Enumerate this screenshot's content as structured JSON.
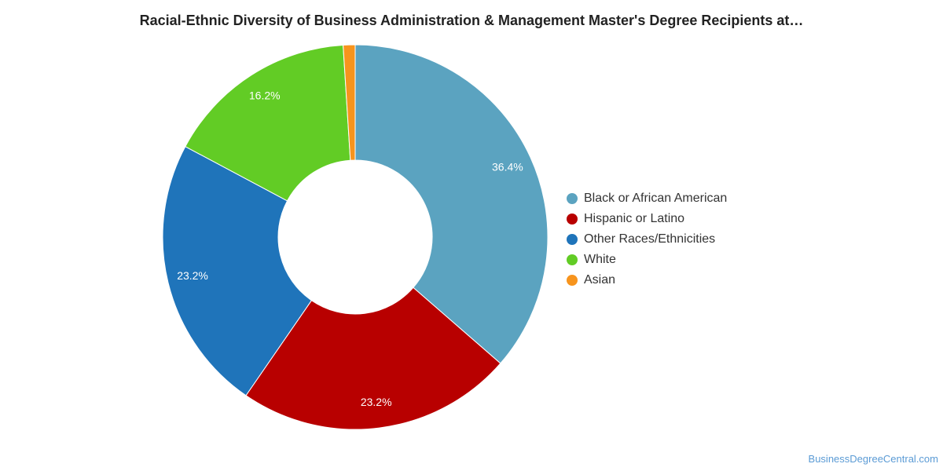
{
  "chart_data": {
    "type": "pie",
    "title": "Racial-Ethnic Diversity of Business Administration & Management Master's Degree Recipients at…",
    "donut": true,
    "legend_position": "right",
    "categories": [
      "Black or African American",
      "Hispanic or Latino",
      "Other Races/Ethnicities",
      "White",
      "Asian"
    ],
    "values": [
      36.4,
      23.2,
      23.2,
      16.2,
      1.0
    ],
    "data_labels": [
      "36.4%",
      "23.2%",
      "23.2%",
      "16.2%",
      ""
    ],
    "colors": [
      "#5ba3c0",
      "#b80000",
      "#1f74ba",
      "#62cc25",
      "#f7941d"
    ]
  },
  "watermark": "BusinessDegreeCentral.com"
}
